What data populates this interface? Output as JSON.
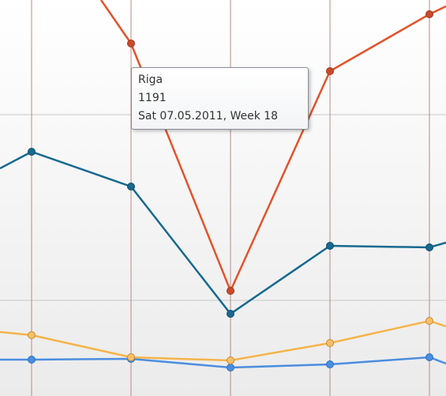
{
  "tooltip": {
    "name": "Riga",
    "value": "1191",
    "date": "Sat 07.05.2011,  Week 18"
  }
}
